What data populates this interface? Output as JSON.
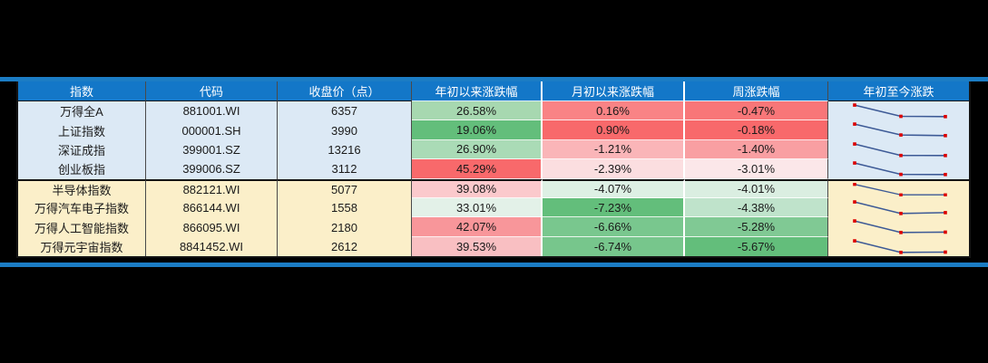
{
  "page": {
    "background": "#000000",
    "accent_line_color": "#1B7CC4"
  },
  "table": {
    "header_bg": "#1377C8",
    "header_text_color": "#FFFFFF",
    "outer_border_color": "#141414",
    "headers": [
      "指数",
      "代码",
      "收盘价（点）",
      "年初以来涨跌幅",
      "月初以来涨跌幅",
      "周涨跌幅",
      "年初至今涨跌"
    ],
    "sparkline": {
      "line_color": "#3D5A96",
      "dot_color": "#DD0000"
    },
    "groups": [
      {
        "bg": "#DCE9F5",
        "rows": [
          {
            "name": "万得全A",
            "code": "881001.WI",
            "close": "6357",
            "ytd": {
              "text": "26.58%",
              "bg": "#A7D8B0"
            },
            "mtd": {
              "text": "0.16%",
              "bg": "#F98385"
            },
            "week": {
              "text": "-0.47%",
              "bg": "#F87678"
            },
            "spark": [
              26.58,
              0.16,
              -0.47
            ]
          },
          {
            "name": "上证指数",
            "code": "000001.SH",
            "close": "3990",
            "ytd": {
              "text": "19.06%",
              "bg": "#63BE7B"
            },
            "mtd": {
              "text": "0.90%",
              "bg": "#F8696B"
            },
            "week": {
              "text": "-0.18%",
              "bg": "#F8696B"
            },
            "spark": [
              19.06,
              0.9,
              -0.18
            ]
          },
          {
            "name": "深证成指",
            "code": "399001.SZ",
            "close": "13216",
            "ytd": {
              "text": "26.90%",
              "bg": "#AADBB6"
            },
            "mtd": {
              "text": "-1.21%",
              "bg": "#FAB5B8"
            },
            "week": {
              "text": "-1.40%",
              "bg": "#F99FA2"
            },
            "spark": [
              26.9,
              -1.21,
              -1.4
            ]
          },
          {
            "name": "创业板指",
            "code": "399006.SZ",
            "close": "3112",
            "ytd": {
              "text": "45.29%",
              "bg": "#F8696B"
            },
            "mtd": {
              "text": "-2.39%",
              "bg": "#FBDEE0"
            },
            "week": {
              "text": "-3.01%",
              "bg": "#FBE7E9"
            },
            "spark": [
              45.29,
              -2.39,
              -3.01
            ]
          }
        ]
      },
      {
        "bg": "#FBEFC9",
        "rows": [
          {
            "name": "半导体指数",
            "code": "882121.WI",
            "close": "5077",
            "ytd": {
              "text": "39.08%",
              "bg": "#FBC9CC"
            },
            "mtd": {
              "text": "-4.07%",
              "bg": "#DDF0E4"
            },
            "week": {
              "text": "-4.01%",
              "bg": "#DAEEE1"
            },
            "spark": [
              39.08,
              -4.07,
              -4.01
            ]
          },
          {
            "name": "万得汽车电子指数",
            "code": "866144.WI",
            "close": "1558",
            "ytd": {
              "text": "33.01%",
              "bg": "#E3F1E8"
            },
            "mtd": {
              "text": "-7.23%",
              "bg": "#63BE7B"
            },
            "week": {
              "text": "-4.38%",
              "bg": "#BFE3CB"
            },
            "spark": [
              33.01,
              -7.23,
              -4.38
            ]
          },
          {
            "name": "万得人工智能指数",
            "code": "866095.WI",
            "close": "2180",
            "ytd": {
              "text": "42.07%",
              "bg": "#F8969A"
            },
            "mtd": {
              "text": "-6.66%",
              "bg": "#79C78E"
            },
            "week": {
              "text": "-5.28%",
              "bg": "#80C994"
            },
            "spark": [
              42.07,
              -6.66,
              -5.28
            ]
          },
          {
            "name": "万得元宇宙指数",
            "code": "8841452.WI",
            "close": "2612",
            "ytd": {
              "text": "39.53%",
              "bg": "#F9BFC2"
            },
            "mtd": {
              "text": "-6.74%",
              "bg": "#77C68C"
            },
            "week": {
              "text": "-5.67%",
              "bg": "#63BE7B"
            },
            "spark": [
              39.53,
              -6.74,
              -5.67
            ]
          }
        ]
      }
    ]
  },
  "chart_data": {
    "type": "table",
    "title": "",
    "columns": [
      "指数",
      "代码",
      "收盘价（点）",
      "年初以来涨跌幅",
      "月初以来涨跌幅",
      "周涨跌幅",
      "年初至今涨跌"
    ],
    "rows": [
      [
        "万得全A",
        "881001.WI",
        6357,
        "26.58%",
        "0.16%",
        "-0.47%"
      ],
      [
        "上证指数",
        "000001.SH",
        3990,
        "19.06%",
        "0.90%",
        "-0.18%"
      ],
      [
        "深证成指",
        "399001.SZ",
        13216,
        "26.90%",
        "-1.21%",
        "-1.40%"
      ],
      [
        "创业板指",
        "399006.SZ",
        3112,
        "45.29%",
        "-2.39%",
        "-3.01%"
      ],
      [
        "半导体指数",
        "882121.WI",
        5077,
        "39.08%",
        "-4.07%",
        "-4.01%"
      ],
      [
        "万得汽车电子指数",
        "866144.WI",
        1558,
        "33.01%",
        "-7.23%",
        "-4.38%"
      ],
      [
        "万得人工智能指数",
        "866095.WI",
        2180,
        "42.07%",
        "-6.66%",
        "-5.28%"
      ],
      [
        "万得元宇宙指数",
        "8841452.WI",
        2612,
        "39.53%",
        "-6.74%",
        "-5.67%"
      ]
    ],
    "sparklines": {
      "column": "年初至今涨跌",
      "type": "line",
      "x_labels": [
        "年初以来涨跌幅",
        "月初以来涨跌幅",
        "周涨跌幅"
      ],
      "series": [
        [
          26.58,
          0.16,
          -0.47
        ],
        [
          19.06,
          0.9,
          -0.18
        ],
        [
          26.9,
          -1.21,
          -1.4
        ],
        [
          45.29,
          -2.39,
          -3.01
        ],
        [
          39.08,
          -4.07,
          -4.01
        ],
        [
          33.01,
          -7.23,
          -4.38
        ],
        [
          42.07,
          -6.66,
          -5.28
        ],
        [
          39.53,
          -6.74,
          -5.67
        ]
      ]
    },
    "color_scale": "green(low) to white to red(high), per column",
    "row_group_backgrounds": [
      "#DCE9F5",
      "#FBEFC9"
    ]
  }
}
